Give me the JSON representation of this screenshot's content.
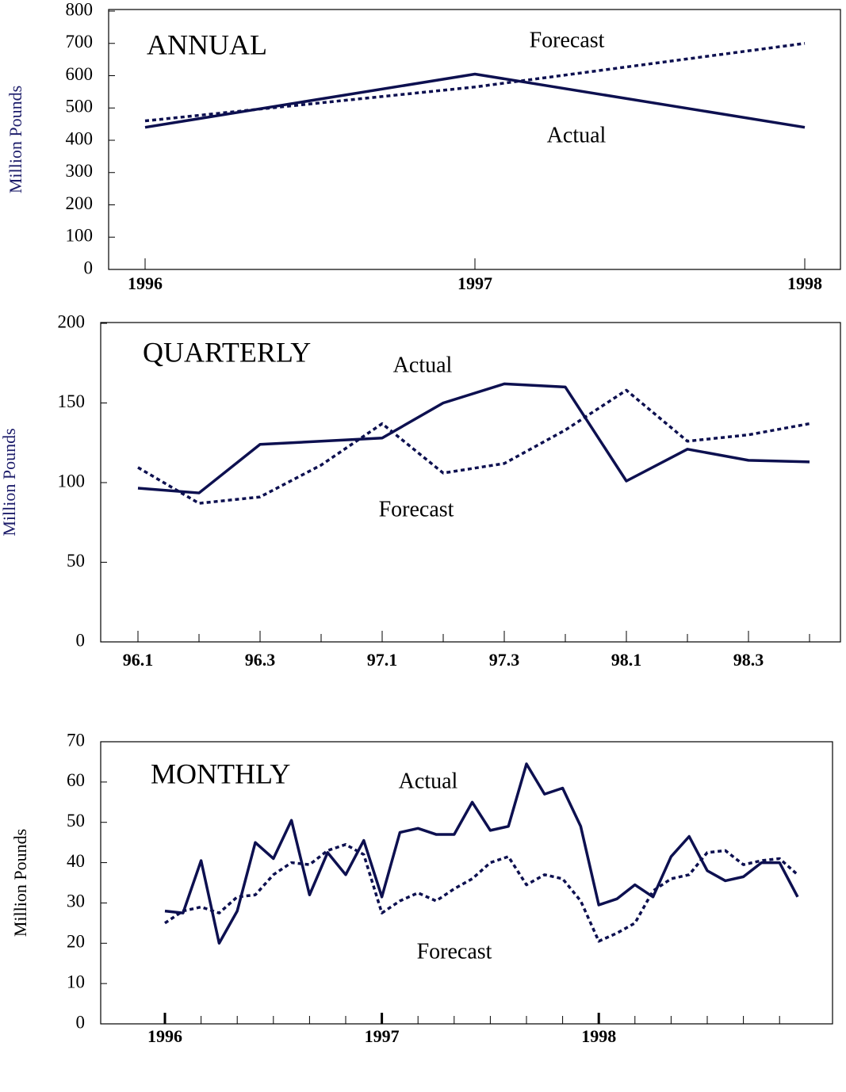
{
  "chart_data": [
    {
      "type": "line",
      "title": "ANNUAL",
      "y_label": "Million Pounds",
      "ylabel_color": "#1c1c6a",
      "categories": [
        "1996",
        "1997",
        "1998"
      ],
      "series": [
        {
          "name": "Actual",
          "color": "#0d1050",
          "style": "solid",
          "values": [
            440,
            605,
            440
          ]
        },
        {
          "name": "Forecast",
          "color": "#0d1050",
          "style": "dotted",
          "values": [
            460,
            565,
            700
          ]
        }
      ],
      "ylim": [
        0,
        800
      ],
      "yticks": [
        0,
        100,
        200,
        300,
        400,
        500,
        600,
        700,
        800
      ]
    },
    {
      "type": "line",
      "title": "QUARTERLY",
      "y_label": "Million Pounds",
      "ylabel_color": "#1c1c6a",
      "categories": [
        "96.1",
        null,
        "96.3",
        null,
        "97.1",
        null,
        "97.3",
        null,
        "98.1",
        null,
        "98.3",
        null
      ],
      "series": [
        {
          "name": "Actual",
          "color": "#0d1050",
          "style": "solid",
          "values": [
            96.5,
            93.5,
            124,
            126,
            128,
            150,
            162,
            160,
            101,
            121,
            114,
            113
          ]
        },
        {
          "name": "Forecast",
          "color": "#0d1050",
          "style": "dotted",
          "values": [
            109.5,
            87,
            91,
            111,
            137,
            106,
            112,
            133,
            158,
            126,
            130,
            137
          ]
        }
      ],
      "ylim": [
        0,
        200
      ],
      "yticks": [
        0,
        50,
        100,
        150,
        200
      ]
    },
    {
      "type": "line",
      "title": "MONTHLY",
      "y_label": "Million Pounds",
      "ylabel_color": "#000000",
      "categories": [
        "1996",
        null,
        null,
        null,
        null,
        null,
        null,
        null,
        null,
        null,
        null,
        null,
        "1997",
        null,
        null,
        null,
        null,
        null,
        null,
        null,
        null,
        null,
        null,
        null,
        "1998",
        null,
        null,
        null,
        null,
        null,
        null,
        null,
        null,
        null,
        null,
        null
      ],
      "series": [
        {
          "name": "Actual",
          "color": "#0d1050",
          "style": "solid",
          "values": [
            28,
            27.5,
            40.5,
            20,
            28,
            45,
            41,
            50.5,
            32,
            42.5,
            37,
            45.5,
            31.5,
            47.5,
            48.5,
            47,
            47,
            55,
            48,
            49,
            64.5,
            57,
            58.5,
            49,
            29.5,
            31,
            34.5,
            31.5,
            41.5,
            46.5,
            38,
            35.5,
            36.5,
            40,
            40,
            31.5
          ]
        },
        {
          "name": "Forecast",
          "color": "#0d1050",
          "style": "dotted",
          "values": [
            25,
            28,
            29,
            27.5,
            31.5,
            32,
            37,
            40,
            39.5,
            43,
            44.5,
            42,
            27.5,
            30.5,
            32.5,
            30.5,
            33.5,
            36,
            40,
            41.5,
            34.5,
            37,
            36,
            30.5,
            20.5,
            22.5,
            25,
            33,
            36,
            37,
            42.5,
            43,
            39.5,
            40.5,
            41,
            37
          ]
        }
      ],
      "ylim": [
        0,
        70
      ],
      "yticks": [
        0,
        10,
        20,
        30,
        40,
        50,
        60,
        70
      ]
    }
  ]
}
